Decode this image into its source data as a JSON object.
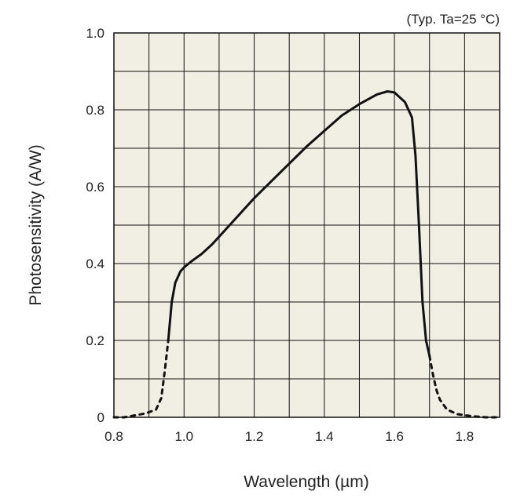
{
  "chart_data": {
    "type": "line",
    "title": "",
    "annotation": "(Typ. Ta=25 °C)",
    "xlabel": "Wavelength (µm)",
    "ylabel": "Photosensitivity (A/W)",
    "xlim": [
      0.8,
      1.9
    ],
    "ylim": [
      0,
      1.0
    ],
    "x_ticks": [
      0.8,
      1.0,
      1.2,
      1.4,
      1.6,
      1.8
    ],
    "x_tick_labels": [
      "0.8",
      "1.0",
      "1.2",
      "1.4",
      "1.6",
      "1.8"
    ],
    "y_ticks": [
      0,
      0.2,
      0.4,
      0.6,
      0.8,
      1.0
    ],
    "y_tick_labels": [
      "0",
      "0.2",
      "0.4",
      "0.6",
      "0.8",
      "1.0"
    ],
    "grid": true,
    "plot_background": "#f1efe4",
    "line_color": "#111111",
    "series": [
      {
        "style": "dashed",
        "x": [
          0.8,
          0.83,
          0.86,
          0.89,
          0.92,
          0.935,
          0.945,
          0.955
        ],
        "y": [
          0.0,
          0.0,
          0.005,
          0.01,
          0.02,
          0.05,
          0.12,
          0.2
        ]
      },
      {
        "style": "solid",
        "x": [
          0.955,
          0.965,
          0.975,
          0.99,
          1.0,
          1.02,
          1.05,
          1.08,
          1.1,
          1.15,
          1.2,
          1.25,
          1.3,
          1.35,
          1.4,
          1.45,
          1.5,
          1.55,
          1.58,
          1.6,
          1.63,
          1.65,
          1.66,
          1.67,
          1.68,
          1.69,
          1.7
        ],
        "y": [
          0.2,
          0.3,
          0.35,
          0.38,
          0.39,
          0.405,
          0.425,
          0.45,
          0.47,
          0.52,
          0.57,
          0.615,
          0.66,
          0.705,
          0.745,
          0.785,
          0.815,
          0.84,
          0.848,
          0.845,
          0.82,
          0.78,
          0.68,
          0.5,
          0.3,
          0.2,
          0.16
        ]
      },
      {
        "style": "dashed",
        "x": [
          1.7,
          1.71,
          1.72,
          1.73,
          1.75,
          1.78,
          1.82,
          1.86,
          1.9
        ],
        "y": [
          0.16,
          0.11,
          0.07,
          0.045,
          0.02,
          0.008,
          0.003,
          0.0,
          0.0
        ]
      }
    ]
  }
}
